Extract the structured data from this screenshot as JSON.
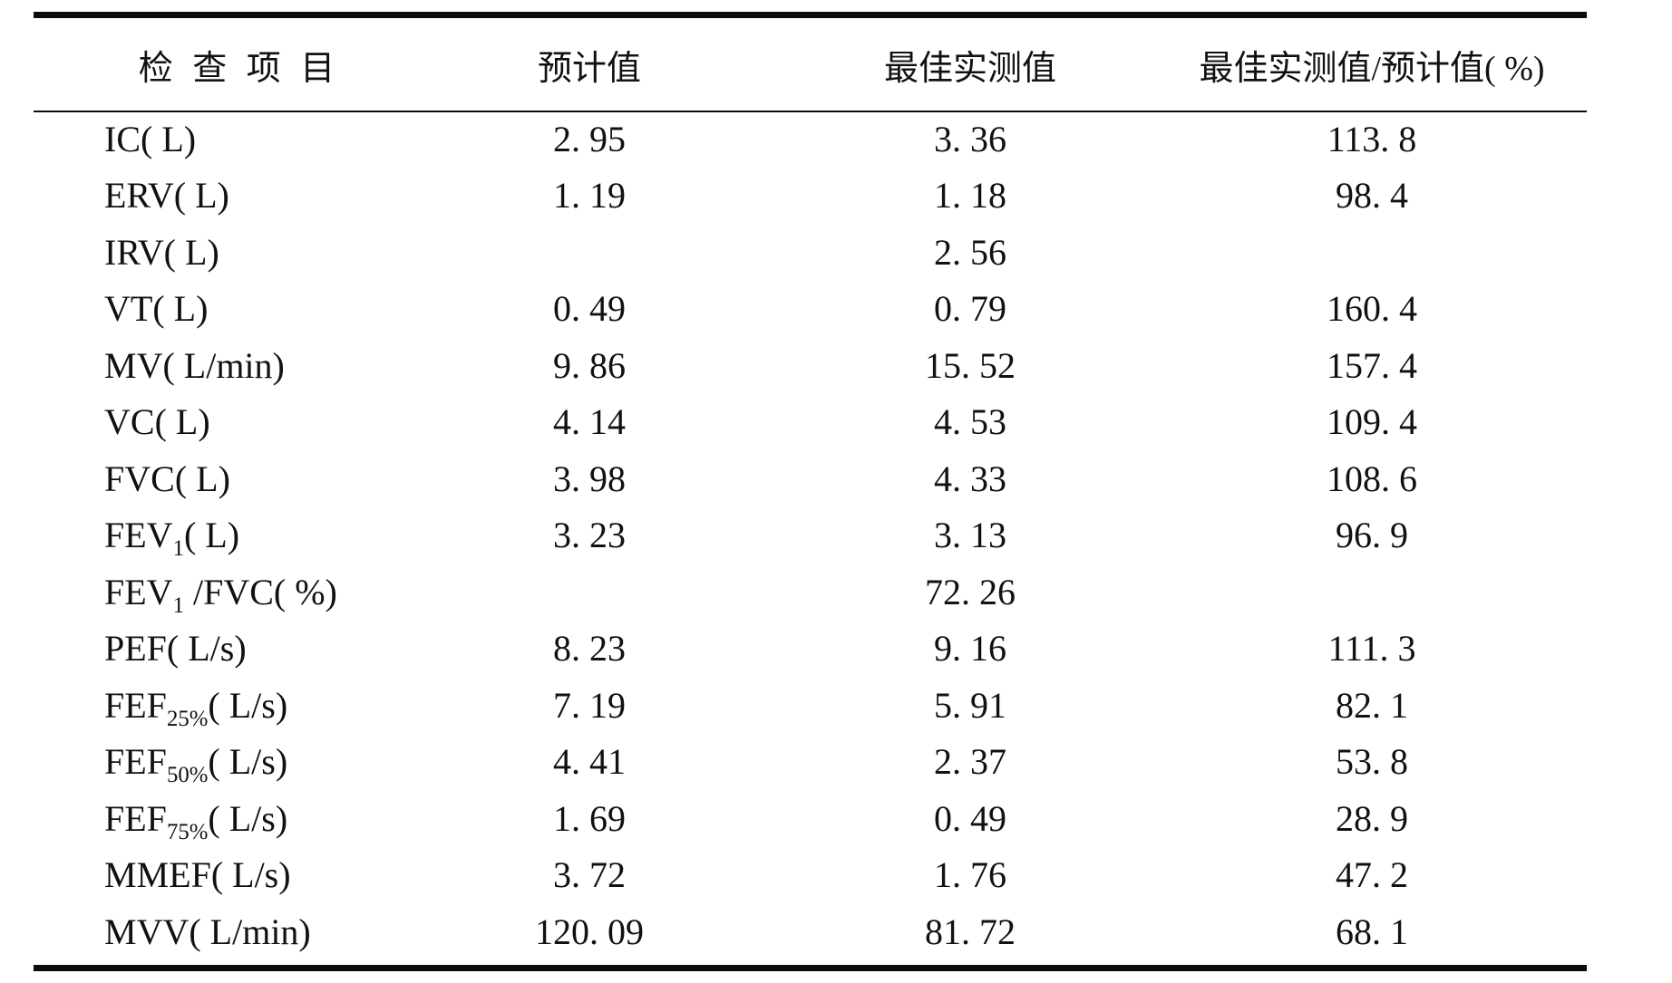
{
  "page": {
    "background": "#ffffff",
    "text_color": "#111111",
    "rule_color": "#0c0c0c"
  },
  "table": {
    "columns": [
      {
        "label": "检 查 项 目"
      },
      {
        "label": "预计值"
      },
      {
        "label": "最佳实测值"
      },
      {
        "label": "最佳实测值/预计值( %)"
      }
    ],
    "rows": [
      {
        "item": [
          {
            "t": "IC( L)"
          }
        ],
        "predicted": "2. 95",
        "measured": "3. 36",
        "ratio": "113. 8"
      },
      {
        "item": [
          {
            "t": "ERV( L)"
          }
        ],
        "predicted": "1. 19",
        "measured": "1. 18",
        "ratio": "98. 4"
      },
      {
        "item": [
          {
            "t": "IRV( L)"
          }
        ],
        "predicted": "",
        "measured": "2. 56",
        "ratio": ""
      },
      {
        "item": [
          {
            "t": "VT( L)"
          }
        ],
        "predicted": "0. 49",
        "measured": "0. 79",
        "ratio": "160. 4"
      },
      {
        "item": [
          {
            "t": "MV( L/min)"
          }
        ],
        "predicted": "9. 86",
        "measured": "15. 52",
        "ratio": "157. 4"
      },
      {
        "item": [
          {
            "t": "VC( L)"
          }
        ],
        "predicted": "4. 14",
        "measured": "4. 53",
        "ratio": "109. 4"
      },
      {
        "item": [
          {
            "t": "FVC( L)"
          }
        ],
        "predicted": "3. 98",
        "measured": "4. 33",
        "ratio": "108. 6"
      },
      {
        "item": [
          {
            "t": "FEV"
          },
          {
            "t": "1",
            "sub": true
          },
          {
            "t": "( L)"
          }
        ],
        "predicted": "3. 23",
        "measured": "3. 13",
        "ratio": "96. 9"
      },
      {
        "item": [
          {
            "t": "FEV"
          },
          {
            "t": "1",
            "sub": true
          },
          {
            "t": " /FVC( %)"
          }
        ],
        "predicted": "",
        "measured": "72. 26",
        "ratio": ""
      },
      {
        "item": [
          {
            "t": "PEF( L/s)"
          }
        ],
        "predicted": "8. 23",
        "measured": "9. 16",
        "ratio": "111. 3"
      },
      {
        "item": [
          {
            "t": "FEF"
          },
          {
            "t": "25%",
            "sub": true
          },
          {
            "t": "( L/s)"
          }
        ],
        "predicted": "7. 19",
        "measured": "5. 91",
        "ratio": "82. 1"
      },
      {
        "item": [
          {
            "t": "FEF"
          },
          {
            "t": "50%",
            "sub": true
          },
          {
            "t": "( L/s)"
          }
        ],
        "predicted": "4. 41",
        "measured": "2. 37",
        "ratio": "53. 8"
      },
      {
        "item": [
          {
            "t": "FEF"
          },
          {
            "t": "75%",
            "sub": true
          },
          {
            "t": "( L/s)"
          }
        ],
        "predicted": "1. 69",
        "measured": "0. 49",
        "ratio": "28. 9"
      },
      {
        "item": [
          {
            "t": "MMEF( L/s)"
          }
        ],
        "predicted": "3. 72",
        "measured": "1. 76",
        "ratio": "47. 2"
      },
      {
        "item": [
          {
            "t": "MVV( L/min)"
          }
        ],
        "predicted": "120. 09",
        "measured": "81. 72",
        "ratio": "68. 1"
      }
    ]
  },
  "chart_data": {
    "type": "table",
    "columns": [
      "检查项目",
      "预计值",
      "最佳实测值",
      "最佳实测值/预计值(%)"
    ],
    "items": [
      "IC(L)",
      "ERV(L)",
      "IRV(L)",
      "VT(L)",
      "MV(L/min)",
      "VC(L)",
      "FVC(L)",
      "FEV1(L)",
      "FEV1/FVC(%)",
      "PEF(L/s)",
      "FEF25%(L/s)",
      "FEF50%(L/s)",
      "FEF75%(L/s)",
      "MMEF(L/s)",
      "MVV(L/min)"
    ],
    "predicted": [
      2.95,
      1.19,
      null,
      0.49,
      9.86,
      4.14,
      3.98,
      3.23,
      null,
      8.23,
      7.19,
      4.41,
      1.69,
      3.72,
      120.09
    ],
    "measured": [
      3.36,
      1.18,
      2.56,
      0.79,
      15.52,
      4.53,
      4.33,
      3.13,
      72.26,
      9.16,
      5.91,
      2.37,
      0.49,
      1.76,
      81.72
    ],
    "ratio_percent": [
      113.8,
      98.4,
      null,
      160.4,
      157.4,
      109.4,
      108.6,
      96.9,
      null,
      111.3,
      82.1,
      53.8,
      28.9,
      47.2,
      68.1
    ]
  }
}
